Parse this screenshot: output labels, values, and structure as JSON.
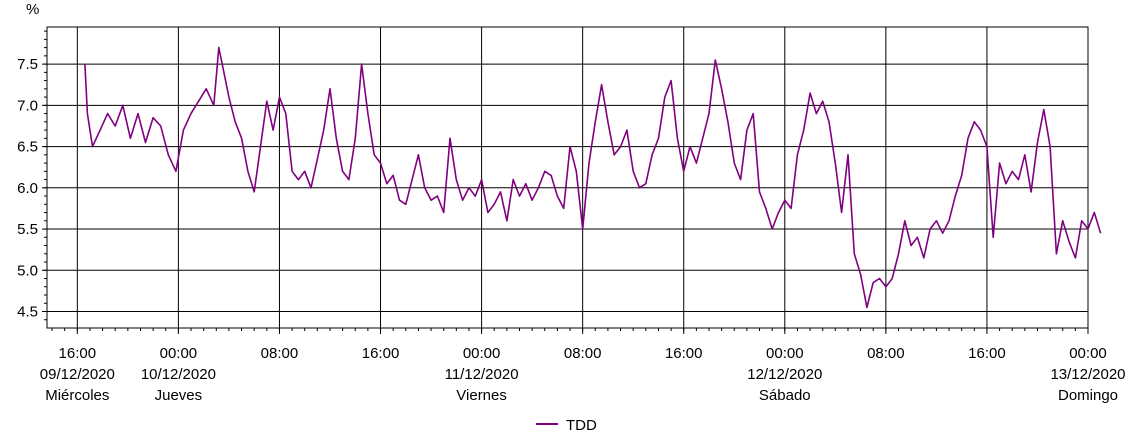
{
  "chart_data": {
    "type": "line",
    "ylabel": "%",
    "ylim": [
      4.3,
      7.95
    ],
    "yticks": [
      4.5,
      5.0,
      5.5,
      6.0,
      6.5,
      7.0,
      7.5
    ],
    "ytick_labels": [
      "4.5",
      "5.0",
      "5.5",
      "6.0",
      "6.5",
      "7.0",
      "7.5"
    ],
    "xlim_hours": [
      -2.4,
      80
    ],
    "xticks": [
      {
        "hour": 0,
        "time": "16:00",
        "date": "09/12/2020",
        "day": "Miércoles"
      },
      {
        "hour": 8,
        "time": "00:00",
        "date": "10/12/2020",
        "day": "Jueves"
      },
      {
        "hour": 16,
        "time": "08:00",
        "date": "",
        "day": ""
      },
      {
        "hour": 24,
        "time": "16:00",
        "date": "",
        "day": ""
      },
      {
        "hour": 32,
        "time": "00:00",
        "date": "11/12/2020",
        "day": "Viernes"
      },
      {
        "hour": 40,
        "time": "08:00",
        "date": "",
        "day": ""
      },
      {
        "hour": 48,
        "time": "16:00",
        "date": "",
        "day": ""
      },
      {
        "hour": 56,
        "time": "00:00",
        "date": "12/12/2020",
        "day": "Sábado"
      },
      {
        "hour": 64,
        "time": "08:00",
        "date": "",
        "day": ""
      },
      {
        "hour": 72,
        "time": "16:00",
        "date": "",
        "day": ""
      },
      {
        "hour": 80,
        "time": "00:00",
        "date": "13/12/2020",
        "day": "Domingo"
      }
    ],
    "grid": true,
    "legend_position": "bottom-center",
    "series": [
      {
        "name": "TDD",
        "color": "#800080",
        "points": [
          [
            0.6,
            7.5
          ],
          [
            0.8,
            6.9
          ],
          [
            1.2,
            6.5
          ],
          [
            1.8,
            6.7
          ],
          [
            2.4,
            6.9
          ],
          [
            3.0,
            6.75
          ],
          [
            3.6,
            7.0
          ],
          [
            4.2,
            6.6
          ],
          [
            4.8,
            6.9
          ],
          [
            5.4,
            6.55
          ],
          [
            6.0,
            6.85
          ],
          [
            6.6,
            6.75
          ],
          [
            7.2,
            6.4
          ],
          [
            7.8,
            6.2
          ],
          [
            8.4,
            6.7
          ],
          [
            9.0,
            6.9
          ],
          [
            9.6,
            7.05
          ],
          [
            10.2,
            7.2
          ],
          [
            10.8,
            7.0
          ],
          [
            11.2,
            7.7
          ],
          [
            11.6,
            7.4
          ],
          [
            12.0,
            7.1
          ],
          [
            12.5,
            6.8
          ],
          [
            13.0,
            6.6
          ],
          [
            13.5,
            6.2
          ],
          [
            14.0,
            5.95
          ],
          [
            14.5,
            6.5
          ],
          [
            15.0,
            7.05
          ],
          [
            15.5,
            6.7
          ],
          [
            16.0,
            7.1
          ],
          [
            16.5,
            6.9
          ],
          [
            17.0,
            6.2
          ],
          [
            17.5,
            6.1
          ],
          [
            18.0,
            6.2
          ],
          [
            18.5,
            6.0
          ],
          [
            19.0,
            6.35
          ],
          [
            19.5,
            6.7
          ],
          [
            20.0,
            7.2
          ],
          [
            20.5,
            6.6
          ],
          [
            21.0,
            6.2
          ],
          [
            21.5,
            6.1
          ],
          [
            22.0,
            6.6
          ],
          [
            22.5,
            7.5
          ],
          [
            23.0,
            6.9
          ],
          [
            23.5,
            6.4
          ],
          [
            24.0,
            6.3
          ],
          [
            24.5,
            6.05
          ],
          [
            25.0,
            6.15
          ],
          [
            25.5,
            5.85
          ],
          [
            26.0,
            5.8
          ],
          [
            26.5,
            6.1
          ],
          [
            27.0,
            6.4
          ],
          [
            27.5,
            6.0
          ],
          [
            28.0,
            5.85
          ],
          [
            28.5,
            5.9
          ],
          [
            29.0,
            5.7
          ],
          [
            29.5,
            6.6
          ],
          [
            30.0,
            6.1
          ],
          [
            30.5,
            5.85
          ],
          [
            31.0,
            6.0
          ],
          [
            31.5,
            5.9
          ],
          [
            32.0,
            6.1
          ],
          [
            32.5,
            5.7
          ],
          [
            33.0,
            5.8
          ],
          [
            33.5,
            5.95
          ],
          [
            34.0,
            5.6
          ],
          [
            34.5,
            6.1
          ],
          [
            35.0,
            5.9
          ],
          [
            35.5,
            6.05
          ],
          [
            36.0,
            5.85
          ],
          [
            36.5,
            6.0
          ],
          [
            37.0,
            6.2
          ],
          [
            37.5,
            6.15
          ],
          [
            38.0,
            5.9
          ],
          [
            38.5,
            5.75
          ],
          [
            39.0,
            6.5
          ],
          [
            39.5,
            6.2
          ],
          [
            40.0,
            5.5
          ],
          [
            40.5,
            6.3
          ],
          [
            41.0,
            6.8
          ],
          [
            41.5,
            7.25
          ],
          [
            42.0,
            6.8
          ],
          [
            42.5,
            6.4
          ],
          [
            43.0,
            6.5
          ],
          [
            43.5,
            6.7
          ],
          [
            44.0,
            6.2
          ],
          [
            44.5,
            6.0
          ],
          [
            45.0,
            6.05
          ],
          [
            45.5,
            6.4
          ],
          [
            46.0,
            6.6
          ],
          [
            46.5,
            7.1
          ],
          [
            47.0,
            7.3
          ],
          [
            47.5,
            6.6
          ],
          [
            48.0,
            6.2
          ],
          [
            48.5,
            6.5
          ],
          [
            49.0,
            6.3
          ],
          [
            49.5,
            6.6
          ],
          [
            50.0,
            6.9
          ],
          [
            50.5,
            7.55
          ],
          [
            51.0,
            7.2
          ],
          [
            51.5,
            6.8
          ],
          [
            52.0,
            6.3
          ],
          [
            52.5,
            6.1
          ],
          [
            53.0,
            6.7
          ],
          [
            53.5,
            6.9
          ],
          [
            54.0,
            5.95
          ],
          [
            54.5,
            5.75
          ],
          [
            55.0,
            5.5
          ],
          [
            55.5,
            5.7
          ],
          [
            56.0,
            5.85
          ],
          [
            56.5,
            5.75
          ],
          [
            57.0,
            6.4
          ],
          [
            57.5,
            6.7
          ],
          [
            58.0,
            7.15
          ],
          [
            58.5,
            6.9
          ],
          [
            59.0,
            7.05
          ],
          [
            59.5,
            6.8
          ],
          [
            60.0,
            6.3
          ],
          [
            60.5,
            5.7
          ],
          [
            61.0,
            6.4
          ],
          [
            61.5,
            5.2
          ],
          [
            62.0,
            4.95
          ],
          [
            62.5,
            4.55
          ],
          [
            63.0,
            4.85
          ],
          [
            63.5,
            4.9
          ],
          [
            64.0,
            4.8
          ],
          [
            64.5,
            4.9
          ],
          [
            65.0,
            5.2
          ],
          [
            65.5,
            5.6
          ],
          [
            66.0,
            5.3
          ],
          [
            66.5,
            5.4
          ],
          [
            67.0,
            5.15
          ],
          [
            67.5,
            5.5
          ],
          [
            68.0,
            5.6
          ],
          [
            68.5,
            5.45
          ],
          [
            69.0,
            5.6
          ],
          [
            69.5,
            5.9
          ],
          [
            70.0,
            6.15
          ],
          [
            70.5,
            6.6
          ],
          [
            71.0,
            6.8
          ],
          [
            71.5,
            6.7
          ],
          [
            72.0,
            6.5
          ],
          [
            72.5,
            5.4
          ],
          [
            73.0,
            6.3
          ],
          [
            73.5,
            6.05
          ],
          [
            74.0,
            6.2
          ],
          [
            74.5,
            6.1
          ],
          [
            75.0,
            6.4
          ],
          [
            75.5,
            5.95
          ],
          [
            76.0,
            6.55
          ],
          [
            76.5,
            6.95
          ],
          [
            77.0,
            6.5
          ],
          [
            77.5,
            5.2
          ],
          [
            78.0,
            5.6
          ],
          [
            78.5,
            5.35
          ],
          [
            79.0,
            5.15
          ],
          [
            79.5,
            5.6
          ],
          [
            80.0,
            5.5
          ],
          [
            80.5,
            5.7
          ],
          [
            81.0,
            5.45
          ]
        ]
      }
    ]
  }
}
